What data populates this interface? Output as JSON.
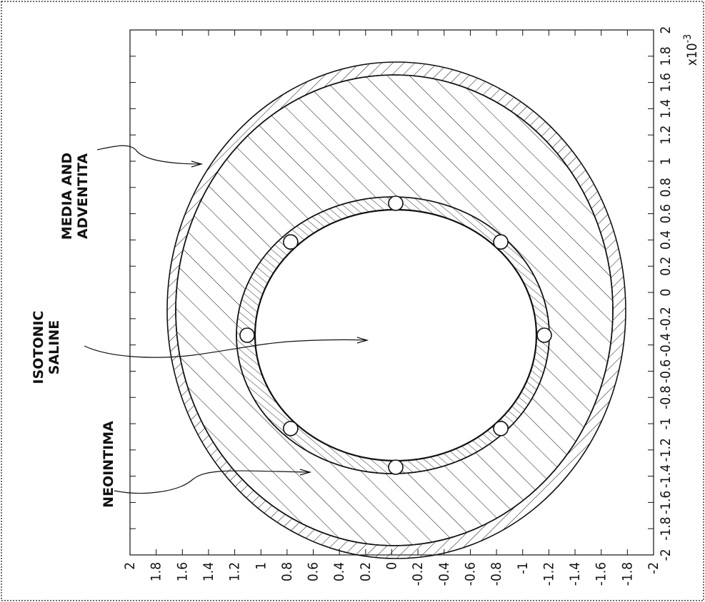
{
  "figure": {
    "type": "cross-section",
    "labels": {
      "media": [
        "MEDIA AND",
        "ADVENTITA"
      ],
      "saline": [
        "ISOTONIC",
        "SALINE"
      ],
      "neointima": "NEOINTIMA"
    },
    "scale_label": "x10",
    "scale_exponent": "-3",
    "x_ticks": [
      "-2",
      "-1.8",
      "-1.6",
      "-1.4",
      "-1.2",
      "-1",
      "-0.8",
      "-0.6",
      "-0.4",
      "-0.2",
      "0",
      "0.2",
      "0.4",
      "0.6",
      "0.8",
      "1",
      "1.2",
      "1.4",
      "1.6",
      "1.8",
      "2"
    ],
    "y_ticks": [
      "2",
      "1.8",
      "1.6",
      "1.4",
      "1.2",
      "1",
      "0.8",
      "0.6",
      "0.4",
      "0.2",
      "0",
      "-0.2",
      "-0.4",
      "-0.6",
      "-0.8",
      "-1",
      "-1.2",
      "-1.4",
      "-1.6",
      "-1.8",
      "-2"
    ],
    "colors": {
      "ink": "#111111",
      "background": "#ffffff"
    }
  }
}
